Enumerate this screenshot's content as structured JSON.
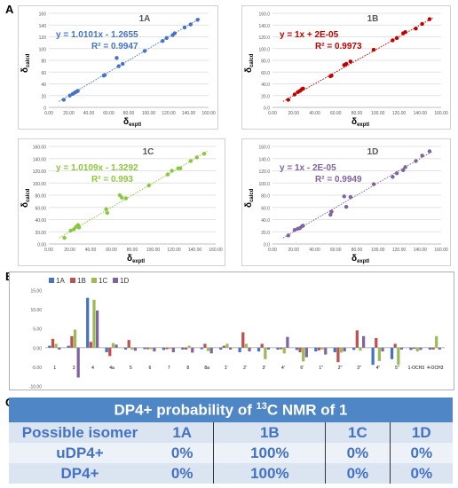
{
  "panel_letters": {
    "a": "A",
    "b": "B",
    "c": "C"
  },
  "chart_data": [
    {
      "type": "scatter",
      "id": "1A",
      "title": "1A",
      "equation": "y = 1.0101x - 1.2655",
      "r2": "R² = 0.9947",
      "color": "#4472c4",
      "xlabel_main": "δ",
      "xlabel_sub": "exptl",
      "ylabel_main": "δ",
      "ylabel_sub": "calcd",
      "xlim": [
        0,
        160
      ],
      "ylim": [
        0,
        160
      ],
      "xticks": [
        "0.00",
        "20.00",
        "40.00",
        "60.00",
        "80.00",
        "100.00",
        "120.00",
        "140.00",
        "160.00"
      ],
      "yticks": [
        "0",
        "20",
        "40",
        "60",
        "80",
        "100",
        "120",
        "140",
        "160"
      ],
      "x": [
        15,
        21,
        24,
        26,
        28,
        29,
        55,
        56,
        68,
        70,
        74,
        96,
        114,
        118,
        124,
        126,
        136,
        142,
        149
      ],
      "y": [
        13,
        20,
        23,
        25,
        27,
        28,
        54,
        55,
        84,
        70,
        74,
        96,
        113,
        118,
        123,
        126,
        136,
        141,
        149
      ]
    },
    {
      "type": "scatter",
      "id": "1B",
      "title": "1B",
      "equation": "y = 1x + 2E-05",
      "r2": "R² = 0.9973",
      "color": "#c00000",
      "xlabel_main": "δ",
      "xlabel_sub": "exptl",
      "ylabel_main": "δ",
      "ylabel_sub": "calcd",
      "xlim": [
        0,
        160
      ],
      "ylim": [
        0,
        160
      ],
      "xticks": [
        "0.00",
        "20.00",
        "40.00",
        "60.00",
        "80.00",
        "100.00",
        "120.00",
        "140.00",
        "160.00"
      ],
      "yticks": [
        "0.0",
        "20.0",
        "40.0",
        "60.0",
        "80.0",
        "100.0",
        "120.0",
        "140.0",
        "160.0"
      ],
      "x": [
        15,
        21,
        24,
        26,
        28,
        29,
        55,
        56,
        68,
        70,
        74,
        96,
        114,
        118,
        124,
        126,
        136,
        142,
        149
      ],
      "y": [
        13,
        22,
        26,
        28,
        31,
        32,
        53,
        54,
        72,
        74,
        78,
        98,
        114,
        118,
        126,
        128,
        134,
        142,
        150
      ]
    },
    {
      "type": "scatter",
      "id": "1C",
      "title": "1C",
      "equation": "y = 1.0109x - 1.3292",
      "r2": "R² = 0.993",
      "color": "#8cc63e",
      "xlabel_main": "δ",
      "xlabel_sub": "exptl",
      "ylabel_main": "δ",
      "ylabel_sub": "calcd",
      "xlim": [
        0,
        160
      ],
      "ylim": [
        0,
        160
      ],
      "xticks": [
        "0.00",
        "20.00",
        "40.00",
        "60.00",
        "80.00",
        "100.00",
        "120.00",
        "140.00",
        "160.00"
      ],
      "yticks": [
        "0.00",
        "20.00",
        "40.00",
        "60.00",
        "80.00",
        "100.00",
        "120.00",
        "140.00",
        "160.00"
      ],
      "x": [
        15,
        21,
        24,
        26,
        28,
        29,
        55,
        56,
        68,
        70,
        74,
        96,
        114,
        118,
        124,
        126,
        136,
        142,
        149
      ],
      "y": [
        10,
        22,
        24,
        28,
        31,
        27,
        57,
        51,
        80,
        76,
        75,
        96,
        114,
        120,
        124,
        124,
        136,
        142,
        148
      ]
    },
    {
      "type": "scatter",
      "id": "1D",
      "title": "1D",
      "equation": "y = 1x - 2E-05",
      "r2": "R² = 0.9949",
      "color": "#8064a2",
      "xlabel_main": "δ",
      "xlabel_sub": "exptl",
      "ylabel_main": "δ",
      "ylabel_sub": "calcd",
      "xlim": [
        0,
        160
      ],
      "ylim": [
        0,
        160
      ],
      "xticks": [
        "0.00",
        "20.00",
        "40.00",
        "60.00",
        "80.00",
        "100.00",
        "120.00",
        "140.00",
        "160.00"
      ],
      "yticks": [
        "0.0",
        "20.0",
        "40.0",
        "60.0",
        "80.0",
        "100.0",
        "120.0",
        "140.0",
        "160.0"
      ],
      "x": [
        15,
        21,
        24,
        26,
        28,
        29,
        55,
        56,
        68,
        70,
        74,
        96,
        114,
        118,
        124,
        126,
        136,
        142,
        149
      ],
      "y": [
        14,
        23,
        25,
        26,
        29,
        30,
        48,
        53,
        78,
        61,
        77,
        98,
        110,
        116,
        121,
        126,
        136,
        145,
        152
      ]
    },
    {
      "type": "bar",
      "id": "B",
      "ylim": [
        -10,
        15
      ],
      "yticks": [
        "15.00",
        "10.00",
        "5.00",
        "0.00",
        "-5.00",
        "-10.00"
      ],
      "categories": [
        "1",
        "3",
        "4",
        "4a",
        "5",
        "6",
        "7",
        "8",
        "8a",
        "1'",
        "2'",
        "3'",
        "4'",
        "6'",
        "1''",
        "2''",
        "3''",
        "4''",
        "5''",
        "1-OCH3",
        "4-OCH3"
      ],
      "series": [
        {
          "name": "1A",
          "color": "#4472c4",
          "values": [
            0.5,
            0.5,
            13.0,
            -1.2,
            -0.5,
            -0.4,
            -0.6,
            -0.5,
            -0.4,
            -0.5,
            -1.2,
            -1.0,
            -0.5,
            -0.6,
            -1.0,
            -1.2,
            -0.6,
            -4.5,
            -3.0,
            -0.6,
            -0.5
          ]
        },
        {
          "name": "1B",
          "color": "#c0504d",
          "values": [
            2.3,
            3.0,
            1.5,
            -2.2,
            2.0,
            -0.4,
            -0.4,
            -0.5,
            1.0,
            0.5,
            4.0,
            1.0,
            -0.4,
            -1.2,
            -0.7,
            -3.8,
            4.5,
            2.5,
            1.0,
            -0.3,
            -0.5
          ]
        },
        {
          "name": "1C",
          "color": "#9bbb59",
          "values": [
            1.0,
            4.7,
            12.5,
            1.2,
            -0.5,
            -0.4,
            -0.3,
            0.5,
            -0.9,
            1.0,
            1.0,
            -3.0,
            -1.5,
            -3.6,
            -0.5,
            -1.3,
            -0.8,
            -3.5,
            -4.5,
            -1.0,
            3.0
          ]
        },
        {
          "name": "1D",
          "color": "#8064a2",
          "values": [
            -0.5,
            -7.8,
            9.7,
            0.8,
            -0.8,
            -1.0,
            -1.2,
            -1.3,
            -1.5,
            -0.5,
            -1.0,
            -0.5,
            2.8,
            -2.5,
            -1.8,
            -1.0,
            3.0,
            -1.0,
            -0.5,
            -0.6,
            -0.5
          ]
        }
      ]
    }
  ],
  "dp4_table": {
    "title_pre": "DP4+ probability of ",
    "title_sup": "13",
    "title_post": "C NMR of 1",
    "header": [
      "Possible isomer",
      "1A",
      "1B",
      "1C",
      "1D"
    ],
    "rows": [
      {
        "label": "uDP4+",
        "values": [
          "0%",
          "100%",
          "0%",
          "0%"
        ]
      },
      {
        "label": "DP4+",
        "values": [
          "0%",
          "100%",
          "0%",
          "0%"
        ]
      }
    ]
  }
}
